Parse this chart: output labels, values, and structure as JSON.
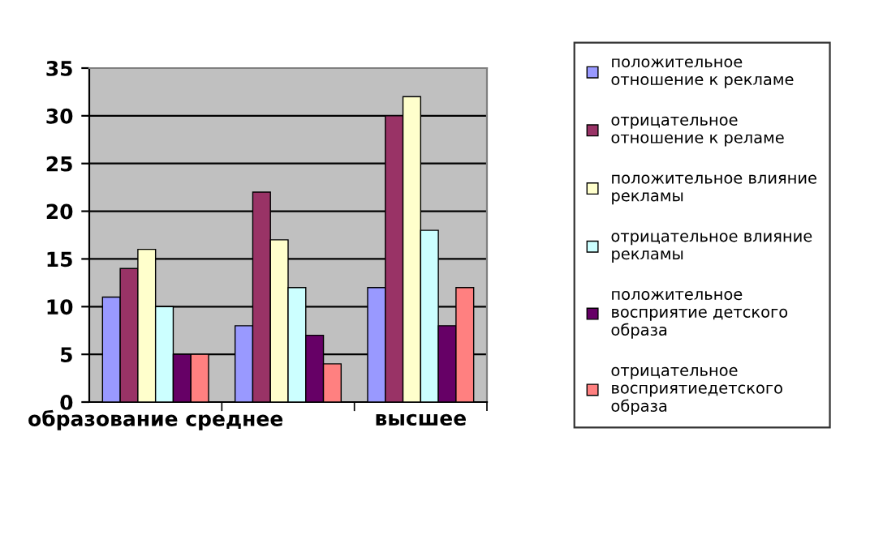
{
  "chart_data": {
    "type": "bar",
    "categories": [
      "образование среднее",
      null,
      "высшее"
    ],
    "series": [
      {
        "name": "положительное\nотношение к рекламе",
        "color": "#9999ff",
        "values": [
          11,
          8,
          12
        ]
      },
      {
        "name": "отрицательное\nотношение к реламе",
        "color": "#993366",
        "values": [
          14,
          22,
          30
        ]
      },
      {
        "name": "положительное влияние\nрекламы",
        "color": "#ffffcc",
        "values": [
          16,
          17,
          32
        ]
      },
      {
        "name": "отрицательное влияние\nрекламы",
        "color": "#ccffff",
        "values": [
          10,
          12,
          18
        ]
      },
      {
        "name": "положительное\nвосприятие детского\nобраза",
        "color": "#660066",
        "values": [
          5,
          7,
          8
        ]
      },
      {
        "name": "отрицательное\nвосприятиедетского\nобраза",
        "color": "#ff8080",
        "values": [
          5,
          4,
          12
        ]
      }
    ],
    "ylim": [
      0,
      35
    ],
    "yticks": [
      0,
      5,
      10,
      15,
      20,
      25,
      30,
      35
    ],
    "grid": "y",
    "legend": "right"
  }
}
